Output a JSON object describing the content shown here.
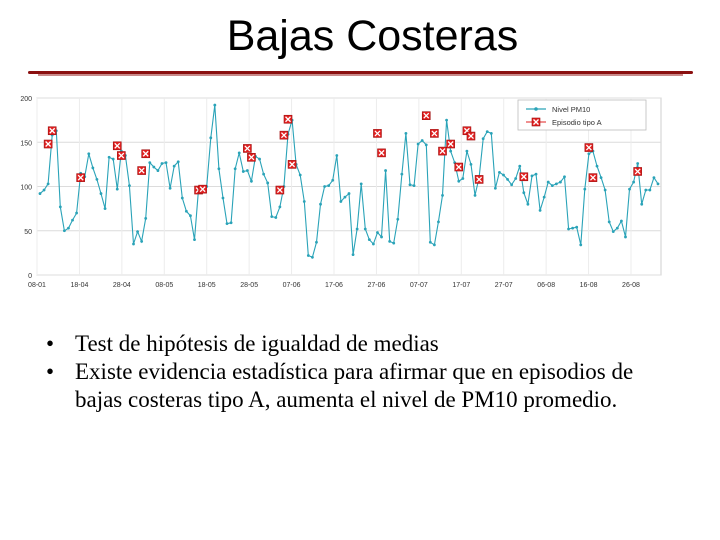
{
  "slide": {
    "title": "Bajas Costeras",
    "bullets": [
      "Test de hipótesis de igualdad de medias",
      "Existe evidencia estadística para afirmar que en episodios de bajas costeras tipo A, aumenta el nivel de PM10 promedio."
    ]
  },
  "colors": {
    "series_line": "#2aa3b8",
    "episode_marker": "#e02020",
    "title_rule": "#8b1010"
  },
  "chart_data": {
    "type": "line",
    "ylim": [
      0,
      200
    ],
    "yticks": [
      0,
      50,
      100,
      150,
      200
    ],
    "xtick_labels": [
      "08-01",
      "18-04",
      "28-04",
      "08-05",
      "18-05",
      "28-05",
      "07-06",
      "17-06",
      "27-06",
      "07-07",
      "17-07",
      "27-07",
      "06-08",
      "16-08",
      "26-08"
    ],
    "grid": true,
    "legend_position": "top-right",
    "series": [
      {
        "name": "Nivel PM10",
        "marker": "dot",
        "values": [
          92,
          96,
          103,
          158,
          163,
          77,
          50,
          53,
          62,
          70,
          115,
          111,
          137,
          121,
          108,
          92,
          75,
          133,
          131,
          97,
          140,
          135,
          101,
          35,
          49,
          38,
          64,
          127,
          122,
          118,
          126,
          127,
          98,
          123,
          128,
          87,
          72,
          67,
          40,
          98,
          100,
          100,
          155,
          192,
          120,
          87,
          58,
          59,
          120,
          138,
          117,
          118,
          106,
          134,
          131,
          114,
          104,
          66,
          65,
          77,
          100,
          159,
          175,
          125,
          113,
          83,
          22,
          20,
          37,
          80,
          100,
          101,
          107,
          135,
          83,
          88,
          92,
          23,
          52,
          103,
          52,
          40,
          35,
          48,
          43,
          118,
          38,
          36,
          63,
          114,
          160,
          102,
          101,
          148,
          152,
          147,
          37,
          34,
          60,
          90,
          175,
          140,
          127,
          106,
          109,
          140,
          125,
          90,
          110,
          154,
          162,
          160,
          98,
          116,
          113,
          108,
          102,
          109,
          123,
          93,
          80,
          112,
          114,
          73,
          88,
          105,
          101,
          103,
          105,
          111,
          52,
          53,
          54,
          34,
          97,
          137,
          140,
          123,
          110,
          96,
          60,
          49,
          53,
          61,
          43,
          97,
          105,
          126,
          80,
          96,
          96,
          110,
          103
        ]
      },
      {
        "name": "Episodio tipo A",
        "marker": "x-box",
        "points": [
          [
            2,
            148
          ],
          [
            3,
            163
          ],
          [
            10,
            110
          ],
          [
            19,
            146
          ],
          [
            20,
            135
          ],
          [
            25,
            118
          ],
          [
            26,
            137
          ],
          [
            39,
            96
          ],
          [
            40,
            97
          ],
          [
            51,
            143
          ],
          [
            52,
            133
          ],
          [
            59,
            96
          ],
          [
            60,
            158
          ],
          [
            61,
            176
          ],
          [
            62,
            125
          ],
          [
            83,
            160
          ],
          [
            84,
            138
          ],
          [
            95,
            180
          ],
          [
            97,
            160
          ],
          [
            99,
            140
          ],
          [
            101,
            148
          ],
          [
            103,
            122
          ],
          [
            105,
            163
          ],
          [
            106,
            157
          ],
          [
            108,
            108
          ],
          [
            119,
            111
          ],
          [
            135,
            144
          ],
          [
            136,
            110
          ],
          [
            147,
            117
          ]
        ]
      }
    ]
  }
}
